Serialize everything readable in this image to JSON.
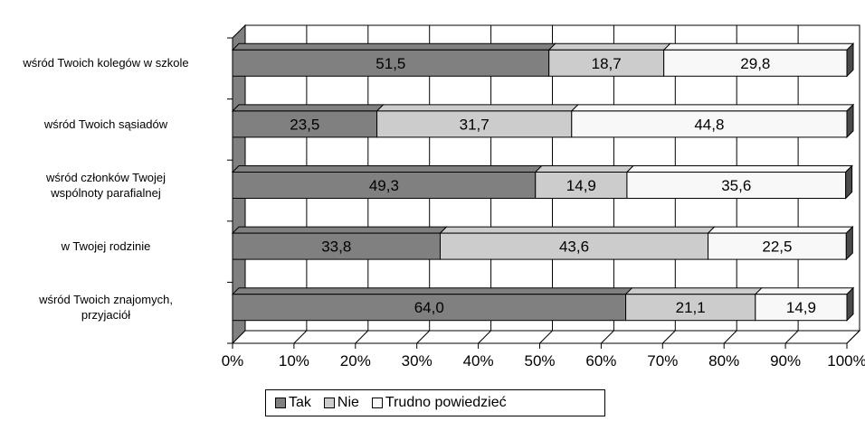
{
  "chart_data": {
    "type": "bar",
    "orientation": "horizontal",
    "stacked": "percent",
    "categories": [
      "wśród Twoich kolegów w szkole",
      "wśród Twoich sąsiadów",
      "wśród członków Twojej\nwspólnoty parafialnej",
      "w Twojej rodzinie",
      "wśród Twoich znajomych,\nprzyjaciół"
    ],
    "series": [
      {
        "name": "Tak",
        "values": [
          51.5,
          23.5,
          49.3,
          33.8,
          64.0
        ],
        "labels": [
          "51,5",
          "23,5",
          "49,3",
          "33,8",
          "64,0"
        ]
      },
      {
        "name": "Nie",
        "values": [
          18.7,
          31.7,
          14.9,
          43.6,
          21.1
        ],
        "labels": [
          "18,7",
          "31,7",
          "14,9",
          "43,6",
          "21,1"
        ]
      },
      {
        "name": "Trudno powiedzieć",
        "values": [
          29.8,
          44.8,
          35.6,
          22.5,
          14.9
        ],
        "labels": [
          "29,8",
          "44,8",
          "35,6",
          "22,5",
          "14,9"
        ]
      }
    ],
    "xticks": [
      "0%",
      "10%",
      "20%",
      "30%",
      "40%",
      "50%",
      "60%",
      "70%",
      "80%",
      "90%",
      "100%"
    ],
    "xlim": [
      0,
      100
    ],
    "grid": true,
    "legend_position": "bottom",
    "three_d": true
  },
  "colors": {
    "Tak": "#808080",
    "Nie": "#cccccc",
    "Trudno powiedzieć": "#f8f8f8",
    "wall": "#808080"
  }
}
